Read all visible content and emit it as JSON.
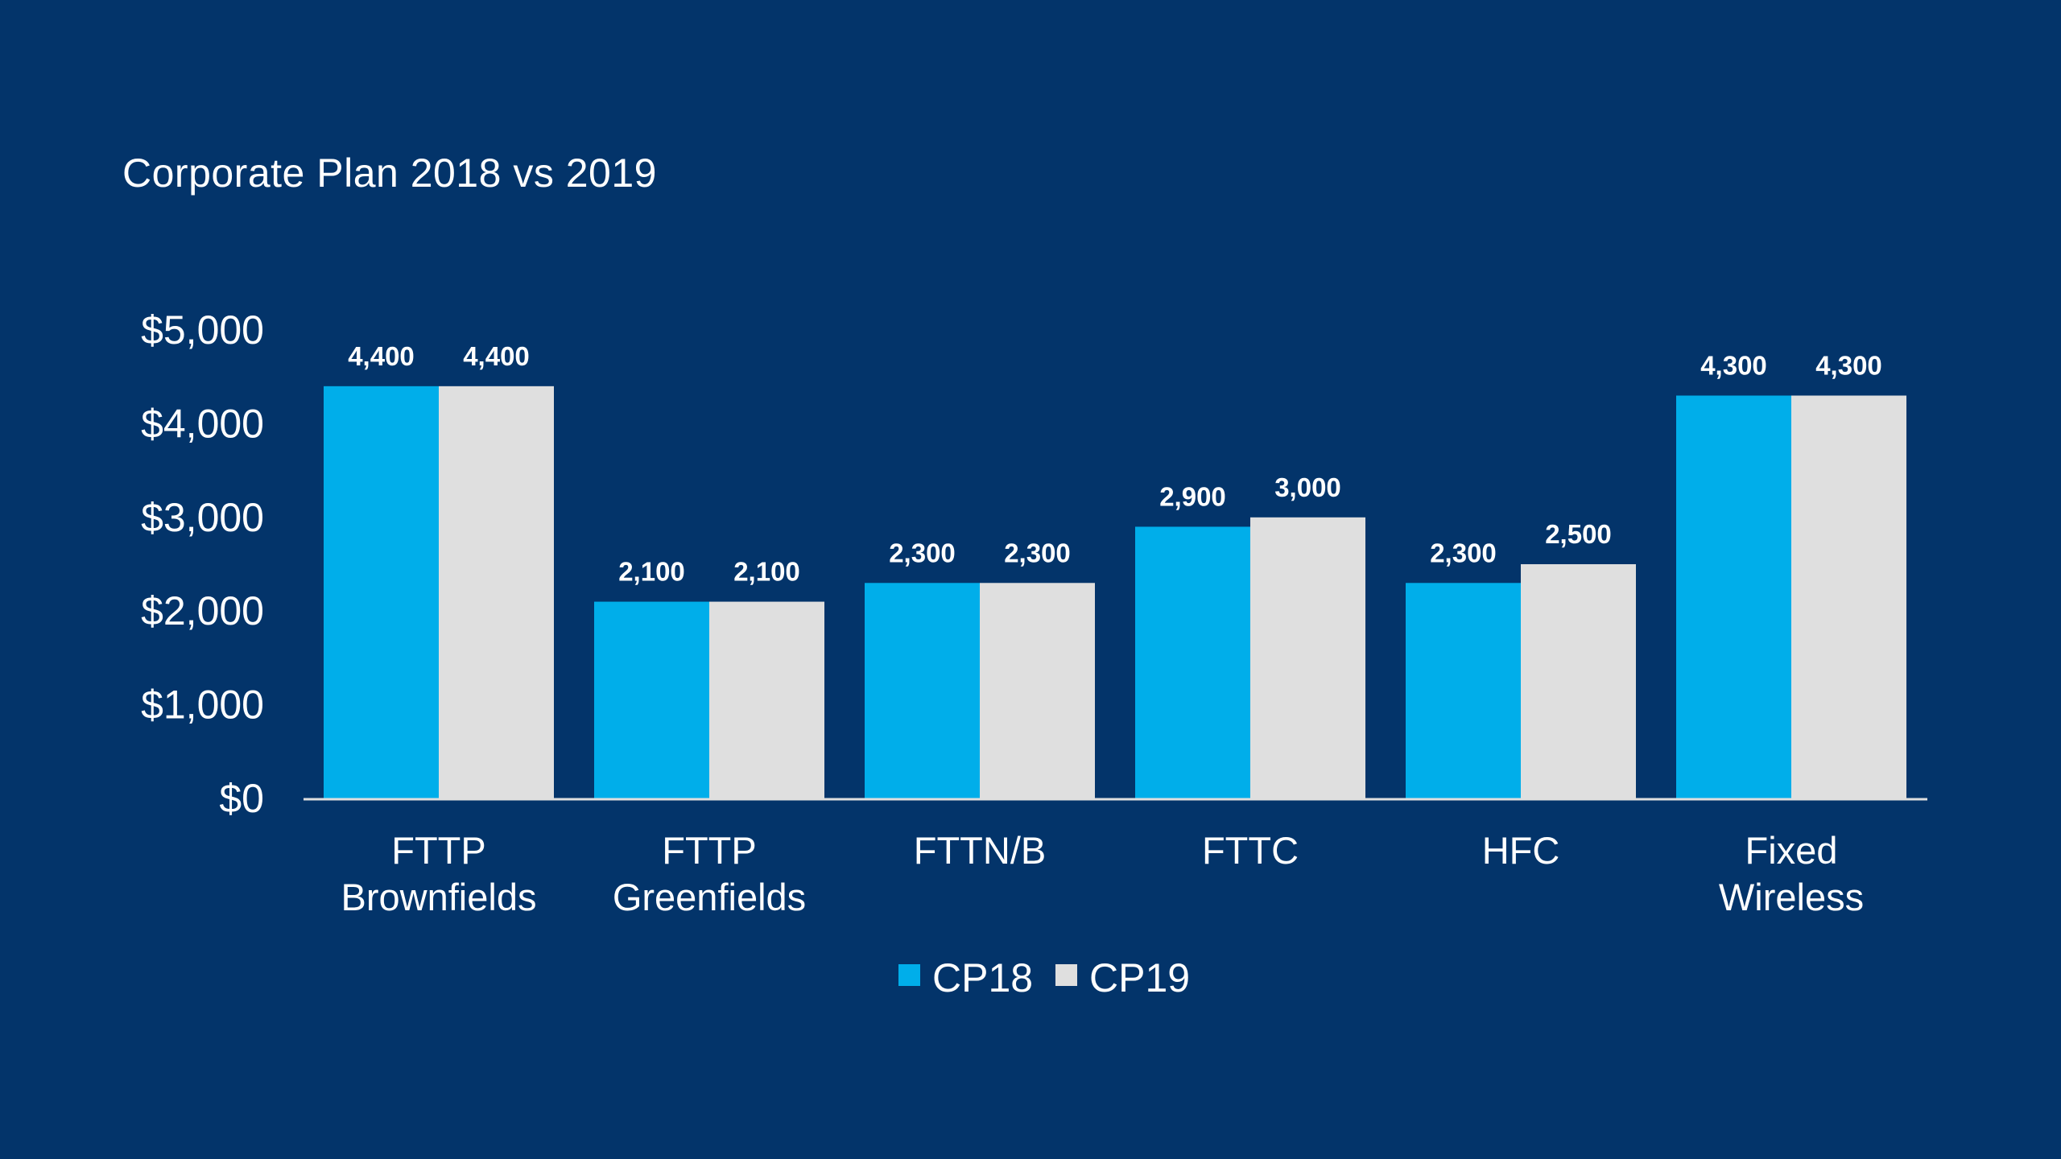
{
  "chart_data": {
    "type": "bar",
    "title": "Corporate Plan 2018 vs 2019",
    "xlabel": "",
    "ylabel": "",
    "categories": [
      [
        "FTTP",
        "Brownfields"
      ],
      [
        "FTTP",
        "Greenfields"
      ],
      [
        "FTTN/B"
      ],
      [
        "FTTC"
      ],
      [
        "HFC"
      ],
      [
        "Fixed",
        "Wireless"
      ]
    ],
    "series": [
      {
        "name": "CP18",
        "color": "#00AEEA",
        "values": [
          4400,
          2100,
          2300,
          2900,
          2300,
          4300
        ],
        "labels": [
          "4,400",
          "2,100",
          "2,300",
          "2,900",
          "2,300",
          "4,300"
        ]
      },
      {
        "name": "CP19",
        "color": "#DFDFDF",
        "values": [
          4400,
          2100,
          2300,
          3000,
          2500,
          4300
        ],
        "labels": [
          "4,400",
          "2,100",
          "2,300",
          "3,000",
          "2,500",
          "4,300"
        ]
      }
    ],
    "ylim": [
      0,
      5000
    ],
    "yticks": [
      0,
      1000,
      2000,
      3000,
      4000,
      5000
    ],
    "ytick_labels": [
      "$0",
      "$1,000",
      "$2,000",
      "$3,000",
      "$4,000",
      "$5,000"
    ],
    "grid": false,
    "legend": {
      "placement": "bottom-center",
      "entries": [
        "CP18",
        "CP19"
      ]
    },
    "colors": {
      "background": "#03346A",
      "axis": "#DFDFDF",
      "text": "#FFFFFF"
    }
  }
}
